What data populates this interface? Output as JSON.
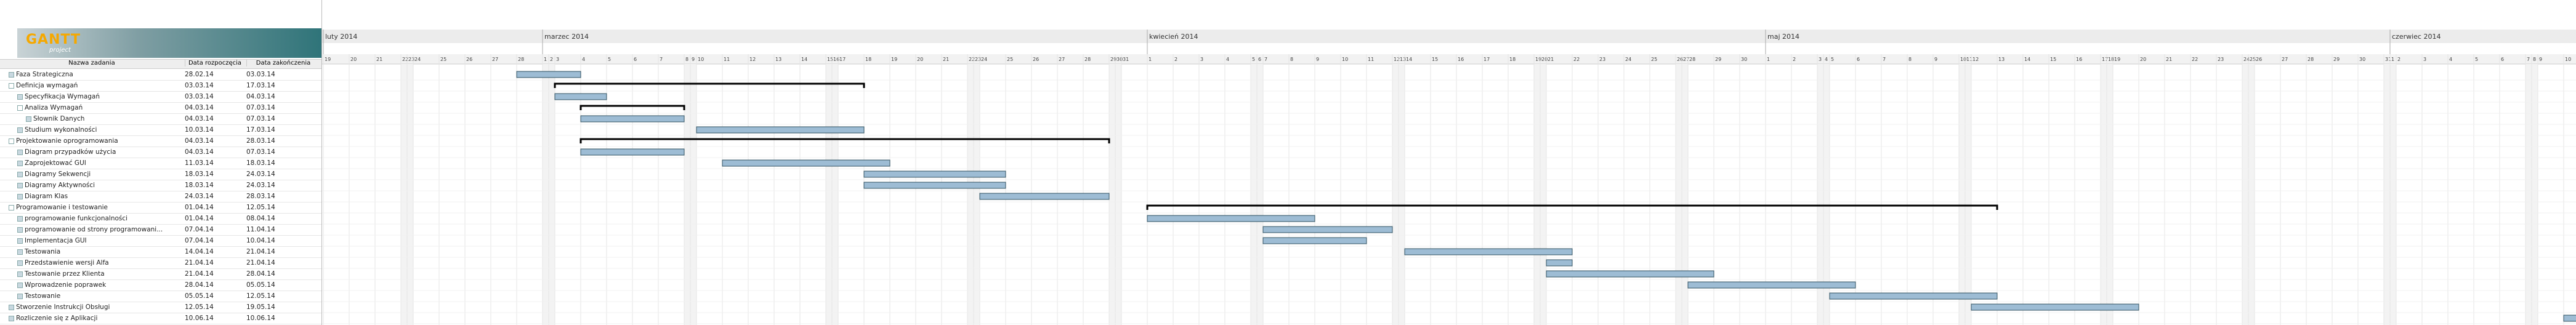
{
  "app": {
    "logo": "GANTT",
    "logo_sub": "project"
  },
  "table": {
    "headers": [
      "Nazwa zadania",
      "Data rozpoczęcia",
      "Data zakończenia"
    ],
    "rows": [
      {
        "name": "Faza Strategiczna",
        "start": "28.02.14",
        "end": "03.03.14",
        "level": 0,
        "summary": false
      },
      {
        "name": "Definicja wymagań",
        "start": "03.03.14",
        "end": "17.03.14",
        "level": 0,
        "summary": true
      },
      {
        "name": "Specyfikacja Wymagań",
        "start": "03.03.14",
        "end": "04.03.14",
        "level": 1,
        "summary": false
      },
      {
        "name": "Analiza Wymagań",
        "start": "04.03.14",
        "end": "07.03.14",
        "level": 1,
        "summary": true
      },
      {
        "name": "Słownik Danych",
        "start": "04.03.14",
        "end": "07.03.14",
        "level": 2,
        "summary": false
      },
      {
        "name": "Studium wykonalności",
        "start": "10.03.14",
        "end": "17.03.14",
        "level": 1,
        "summary": false
      },
      {
        "name": "Projektowanie oprogramowania",
        "start": "04.03.14",
        "end": "28.03.14",
        "level": 0,
        "summary": true
      },
      {
        "name": "Diagram przypadków użycia",
        "start": "04.03.14",
        "end": "07.03.14",
        "level": 1,
        "summary": false
      },
      {
        "name": "Zaprojektować GUI",
        "start": "11.03.14",
        "end": "18.03.14",
        "level": 1,
        "summary": false
      },
      {
        "name": "Diagramy Sekwencji",
        "start": "18.03.14",
        "end": "24.03.14",
        "level": 1,
        "summary": false
      },
      {
        "name": "Diagramy Aktywności",
        "start": "18.03.14",
        "end": "24.03.14",
        "level": 1,
        "summary": false
      },
      {
        "name": "Diagram Klas",
        "start": "24.03.14",
        "end": "28.03.14",
        "level": 1,
        "summary": false
      },
      {
        "name": "Programowanie i testowanie",
        "start": "01.04.14",
        "end": "12.05.14",
        "level": 0,
        "summary": true
      },
      {
        "name": "programowanie funkcjonalności",
        "start": "01.04.14",
        "end": "08.04.14",
        "level": 1,
        "summary": false
      },
      {
        "name": "programowanie od strony programowani...",
        "start": "07.04.14",
        "end": "11.04.14",
        "level": 1,
        "summary": false
      },
      {
        "name": "Implementacja GUI",
        "start": "07.04.14",
        "end": "10.04.14",
        "level": 1,
        "summary": false
      },
      {
        "name": "Testowania",
        "start": "14.04.14",
        "end": "21.04.14",
        "level": 1,
        "summary": false
      },
      {
        "name": "Przedstawienie wersji Alfa",
        "start": "21.04.14",
        "end": "21.04.14",
        "level": 1,
        "summary": false
      },
      {
        "name": "Testowanie przez Klienta",
        "start": "21.04.14",
        "end": "28.04.14",
        "level": 1,
        "summary": false
      },
      {
        "name": "Wprowadzenie poprawek",
        "start": "28.04.14",
        "end": "05.05.14",
        "level": 1,
        "summary": false
      },
      {
        "name": "Testowanie",
        "start": "05.05.14",
        "end": "12.05.14",
        "level": 1,
        "summary": false
      },
      {
        "name": "Stworzenie Instrukcji Obsługi",
        "start": "12.05.14",
        "end": "19.05.14",
        "level": 0,
        "summary": false
      },
      {
        "name": "Rozliczenie się z Aplikacji",
        "start": "10.06.14",
        "end": "10.06.14",
        "level": 0,
        "summary": false
      }
    ]
  },
  "timeline": {
    "months": [
      {
        "label": "luty 2014",
        "days": [
          19,
          20,
          21,
          22,
          23,
          24,
          25,
          26,
          27,
          28
        ]
      },
      {
        "label": "marzec 2014",
        "days": [
          1,
          2,
          3,
          4,
          5,
          6,
          7,
          8,
          9,
          10,
          11,
          12,
          13,
          14,
          15,
          16,
          17,
          18,
          19,
          20,
          21,
          22,
          23,
          24,
          25,
          26,
          27,
          28,
          29,
          30,
          31
        ]
      },
      {
        "label": "kwiecień 2014",
        "days": [
          1,
          2,
          3,
          4,
          5,
          6,
          7,
          8,
          9,
          10,
          11,
          12,
          13,
          14,
          15,
          16,
          17,
          18,
          19,
          20,
          21,
          22,
          23,
          24,
          25,
          26,
          27,
          28,
          29,
          30
        ]
      },
      {
        "label": "maj 2014",
        "days": [
          1,
          2,
          3,
          4,
          5,
          6,
          7,
          8,
          9,
          10,
          11,
          12,
          13,
          14,
          15,
          16,
          17,
          18,
          19,
          20,
          21,
          22,
          23,
          24,
          25,
          26,
          27,
          28,
          29,
          30,
          31
        ]
      },
      {
        "label": "czerwiec 2014",
        "days": [
          1,
          2,
          3,
          4,
          5,
          6,
          7,
          8,
          9,
          10
        ]
      }
    ]
  }
}
